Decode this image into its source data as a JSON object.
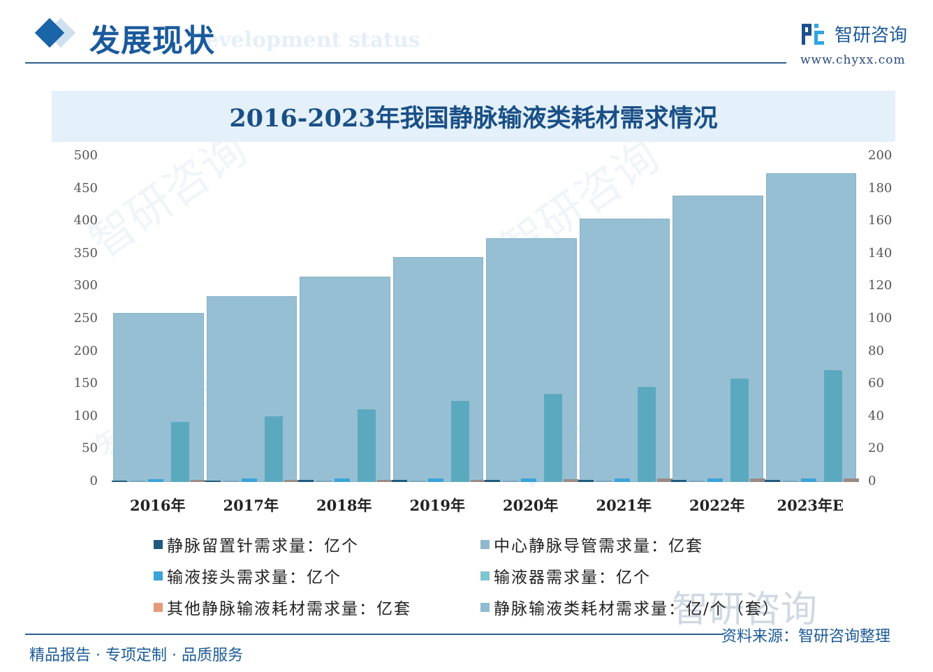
{
  "header": {
    "title": "发展现状",
    "subtitle_en": "Development status",
    "brand_name": "智研咨询",
    "brand_url": "www.chyxx.com"
  },
  "chart_title": "2016-2023年我国静脉输液类耗材需求情况",
  "axes": {
    "left_ticks": [
      "500",
      "450",
      "400",
      "350",
      "300",
      "250",
      "200",
      "150",
      "100",
      "50",
      "0"
    ],
    "right_ticks": [
      "200",
      "180",
      "160",
      "140",
      "120",
      "100",
      "80",
      "60",
      "40",
      "20",
      "0"
    ]
  },
  "categories": [
    "2016年",
    "2017年",
    "2018年",
    "2019年",
    "2020年",
    "2021年",
    "2022年",
    "2023年E"
  ],
  "legend": [
    {
      "label": "静脉留置针需求量：亿个",
      "color": "#1f5a7e"
    },
    {
      "label": "中心静脉导管需求量：亿套",
      "color": "#8fb8cc"
    },
    {
      "label": "输液接头需求量：亿个",
      "color": "#3aa3d8"
    },
    {
      "label": "输液器需求量：亿个",
      "color": "#7fc6cf"
    },
    {
      "label": "其他静脉输液耗材需求量：亿套",
      "color": "#e59a7c"
    },
    {
      "label": "静脉输液类耗材需求量：亿/个（套）",
      "color": "#8fbcd2"
    }
  ],
  "chart_data": {
    "type": "bar",
    "title": "2016-2023年我国静脉输液类耗材需求情况",
    "categories": [
      "2016年",
      "2017年",
      "2018年",
      "2019年",
      "2020年",
      "2021年",
      "2022年",
      "2023年E"
    ],
    "series": [
      {
        "name": "静脉留置针需求量：亿个",
        "axis": "left",
        "color": "#1f5a7e",
        "values": [
          2.5,
          2.6,
          2.7,
          2.8,
          2.9,
          3.0,
          3.1,
          3.2
        ]
      },
      {
        "name": "中心静脉导管需求量：亿套",
        "axis": "left",
        "color": "#7aa6bc",
        "values": [
          0.5,
          0.6,
          0.6,
          0.7,
          0.7,
          0.8,
          0.8,
          0.9
        ]
      },
      {
        "name": "输液接头需求量：亿个",
        "axis": "left",
        "color": "#3aa3d8",
        "values": [
          4.0,
          5.5,
          5.5,
          5.5,
          5.5,
          5.5,
          5.5,
          5.5
        ]
      },
      {
        "name": "输液器需求量：亿个",
        "axis": "left",
        "color": "#5ba9bf",
        "values": [
          92,
          101,
          112,
          124,
          135,
          146,
          159,
          172
        ]
      },
      {
        "name": "其他静脉输液耗材需求量：亿套",
        "axis": "left",
        "color": "#9a8a86",
        "values": [
          3.5,
          3.5,
          3.5,
          3.5,
          4.0,
          5.5,
          5.5,
          5.5
        ]
      },
      {
        "name": "静脉输液类耗材需求量：亿/个（套）",
        "axis": "left",
        "color": "#96bfd3",
        "values": [
          260,
          285,
          315,
          345,
          375,
          405,
          440,
          474
        ]
      }
    ],
    "xlabel": "",
    "ylabel_left": "",
    "ylabel_right": "",
    "ylim_left": [
      0,
      500
    ],
    "ylim_right": [
      0,
      200
    ],
    "left_ticks": [
      0,
      50,
      100,
      150,
      200,
      250,
      300,
      350,
      400,
      450,
      500
    ],
    "right_ticks": [
      0,
      20,
      40,
      60,
      80,
      100,
      120,
      140,
      160,
      180,
      200
    ],
    "grid": false,
    "legend_position": "bottom"
  },
  "footer": {
    "tagline": "精品报告 · 专项定制 · 品质服务",
    "source": "资料来源：智研咨询整理",
    "watermark": "智研咨询"
  }
}
